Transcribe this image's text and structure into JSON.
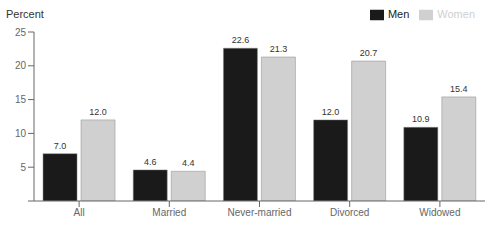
{
  "chart_data": {
    "type": "bar",
    "categories": [
      "All",
      "Married",
      "Never-married",
      "Divorced",
      "Widowed"
    ],
    "series": [
      {
        "name": "Men",
        "color": "#1a1a1a",
        "values": [
          7.0,
          4.6,
          22.6,
          12.0,
          10.9
        ],
        "value_labels": [
          "7.0",
          "4.6",
          "22.6",
          "12.0",
          "10.9"
        ]
      },
      {
        "name": "Women",
        "color": "#d0d0d0",
        "values": [
          12.0,
          4.4,
          21.3,
          20.7,
          15.4
        ],
        "value_labels": [
          "12.0",
          "4.4",
          "21.3",
          "20.7",
          "15.4"
        ]
      }
    ],
    "ylabel": "Percent",
    "ylim": [
      0,
      25
    ],
    "yticks": [
      {
        "value": 0,
        "label": ""
      },
      5,
      10,
      15,
      20,
      25
    ],
    "legend": "upper right",
    "data_labels": true,
    "grid": false
  }
}
